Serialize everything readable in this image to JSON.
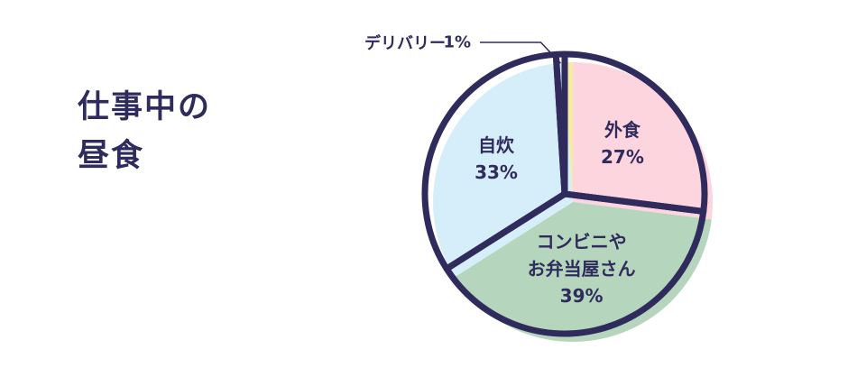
{
  "chart_data": {
    "type": "pie",
    "title": "仕事中の\n昼食",
    "categories": [
      "外食",
      "コンビニや\nお弁当屋さん",
      "自炊",
      "デリバリー"
    ],
    "values": [
      27,
      39,
      33,
      1
    ],
    "value_labels": [
      "27%",
      "39%",
      "33%",
      "1%"
    ],
    "colors": [
      "#fdd5df",
      "#b5d6bd",
      "#d6eefa",
      "#f6eba2"
    ]
  }
}
